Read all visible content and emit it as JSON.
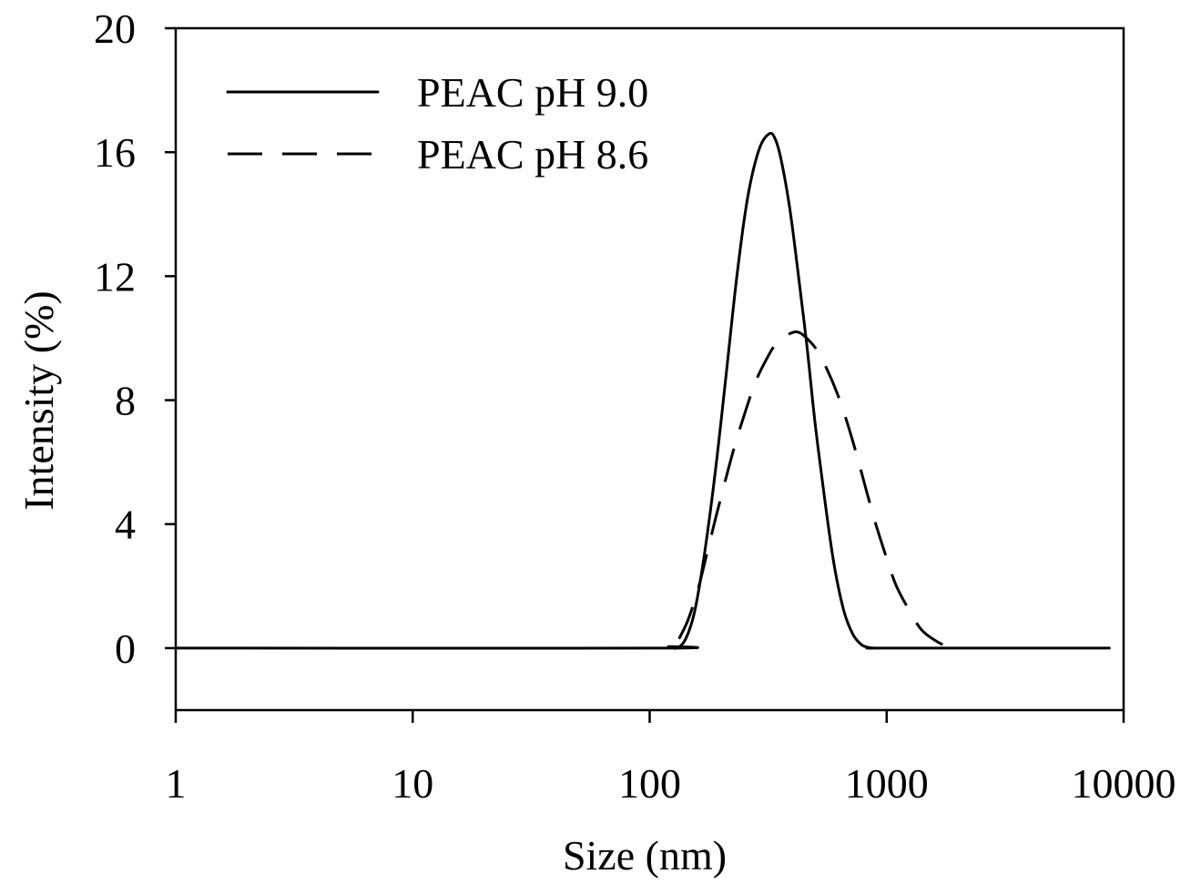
{
  "chart_data": {
    "type": "line",
    "title": "",
    "xlabel": "Size (nm)",
    "ylabel": "Intensity (%)",
    "xscale": "log",
    "xlim": [
      1,
      10000
    ],
    "ylim": [
      -2,
      20
    ],
    "x_ticks": [
      1,
      10,
      100,
      1000,
      10000
    ],
    "x_tick_labels": [
      "1",
      "10",
      "100",
      "1000",
      "10000"
    ],
    "y_ticks": [
      0,
      4,
      8,
      12,
      16,
      20
    ],
    "y_tick_labels": [
      "0",
      "4",
      "8",
      "12",
      "16",
      "20"
    ],
    "grid": false,
    "legend_position": "top-left",
    "series": [
      {
        "name": "PEAC pH 9.0",
        "style": "solid",
        "x": [
          1,
          110,
          120,
          130,
          142,
          155,
          170,
          190,
          210,
          235,
          260,
          290,
          320,
          340,
          360,
          390,
          420,
          460,
          500,
          550,
          600,
          660,
          720,
          780,
          840,
          900,
          1000,
          8700
        ],
        "y": [
          0,
          0,
          0.05,
          0,
          0.3,
          1.2,
          3.0,
          5.8,
          8.8,
          12.2,
          14.6,
          16.1,
          16.6,
          16.4,
          15.7,
          14.2,
          12.3,
          9.8,
          7.2,
          4.7,
          2.7,
          1.2,
          0.45,
          0.12,
          0.02,
          0,
          0,
          0
        ]
      },
      {
        "name": "PEAC pH 8.6",
        "style": "dashed",
        "x": [
          133,
          145,
          160,
          175,
          190,
          210,
          230,
          255,
          280,
          310,
          340,
          380,
          420,
          460,
          510,
          560,
          620,
          680,
          750,
          820,
          900,
          1000,
          1100,
          1250,
          1400,
          1600,
          1800,
          2050
        ],
        "y": [
          0.3,
          0.9,
          1.9,
          3.1,
          4.2,
          5.5,
          6.6,
          7.7,
          8.6,
          9.3,
          9.8,
          10.1,
          10.2,
          10.0,
          9.6,
          9.0,
          8.2,
          7.3,
          6.2,
          5.1,
          4.0,
          2.9,
          2.0,
          1.2,
          0.6,
          0.25,
          0.06,
          0
        ]
      }
    ]
  }
}
